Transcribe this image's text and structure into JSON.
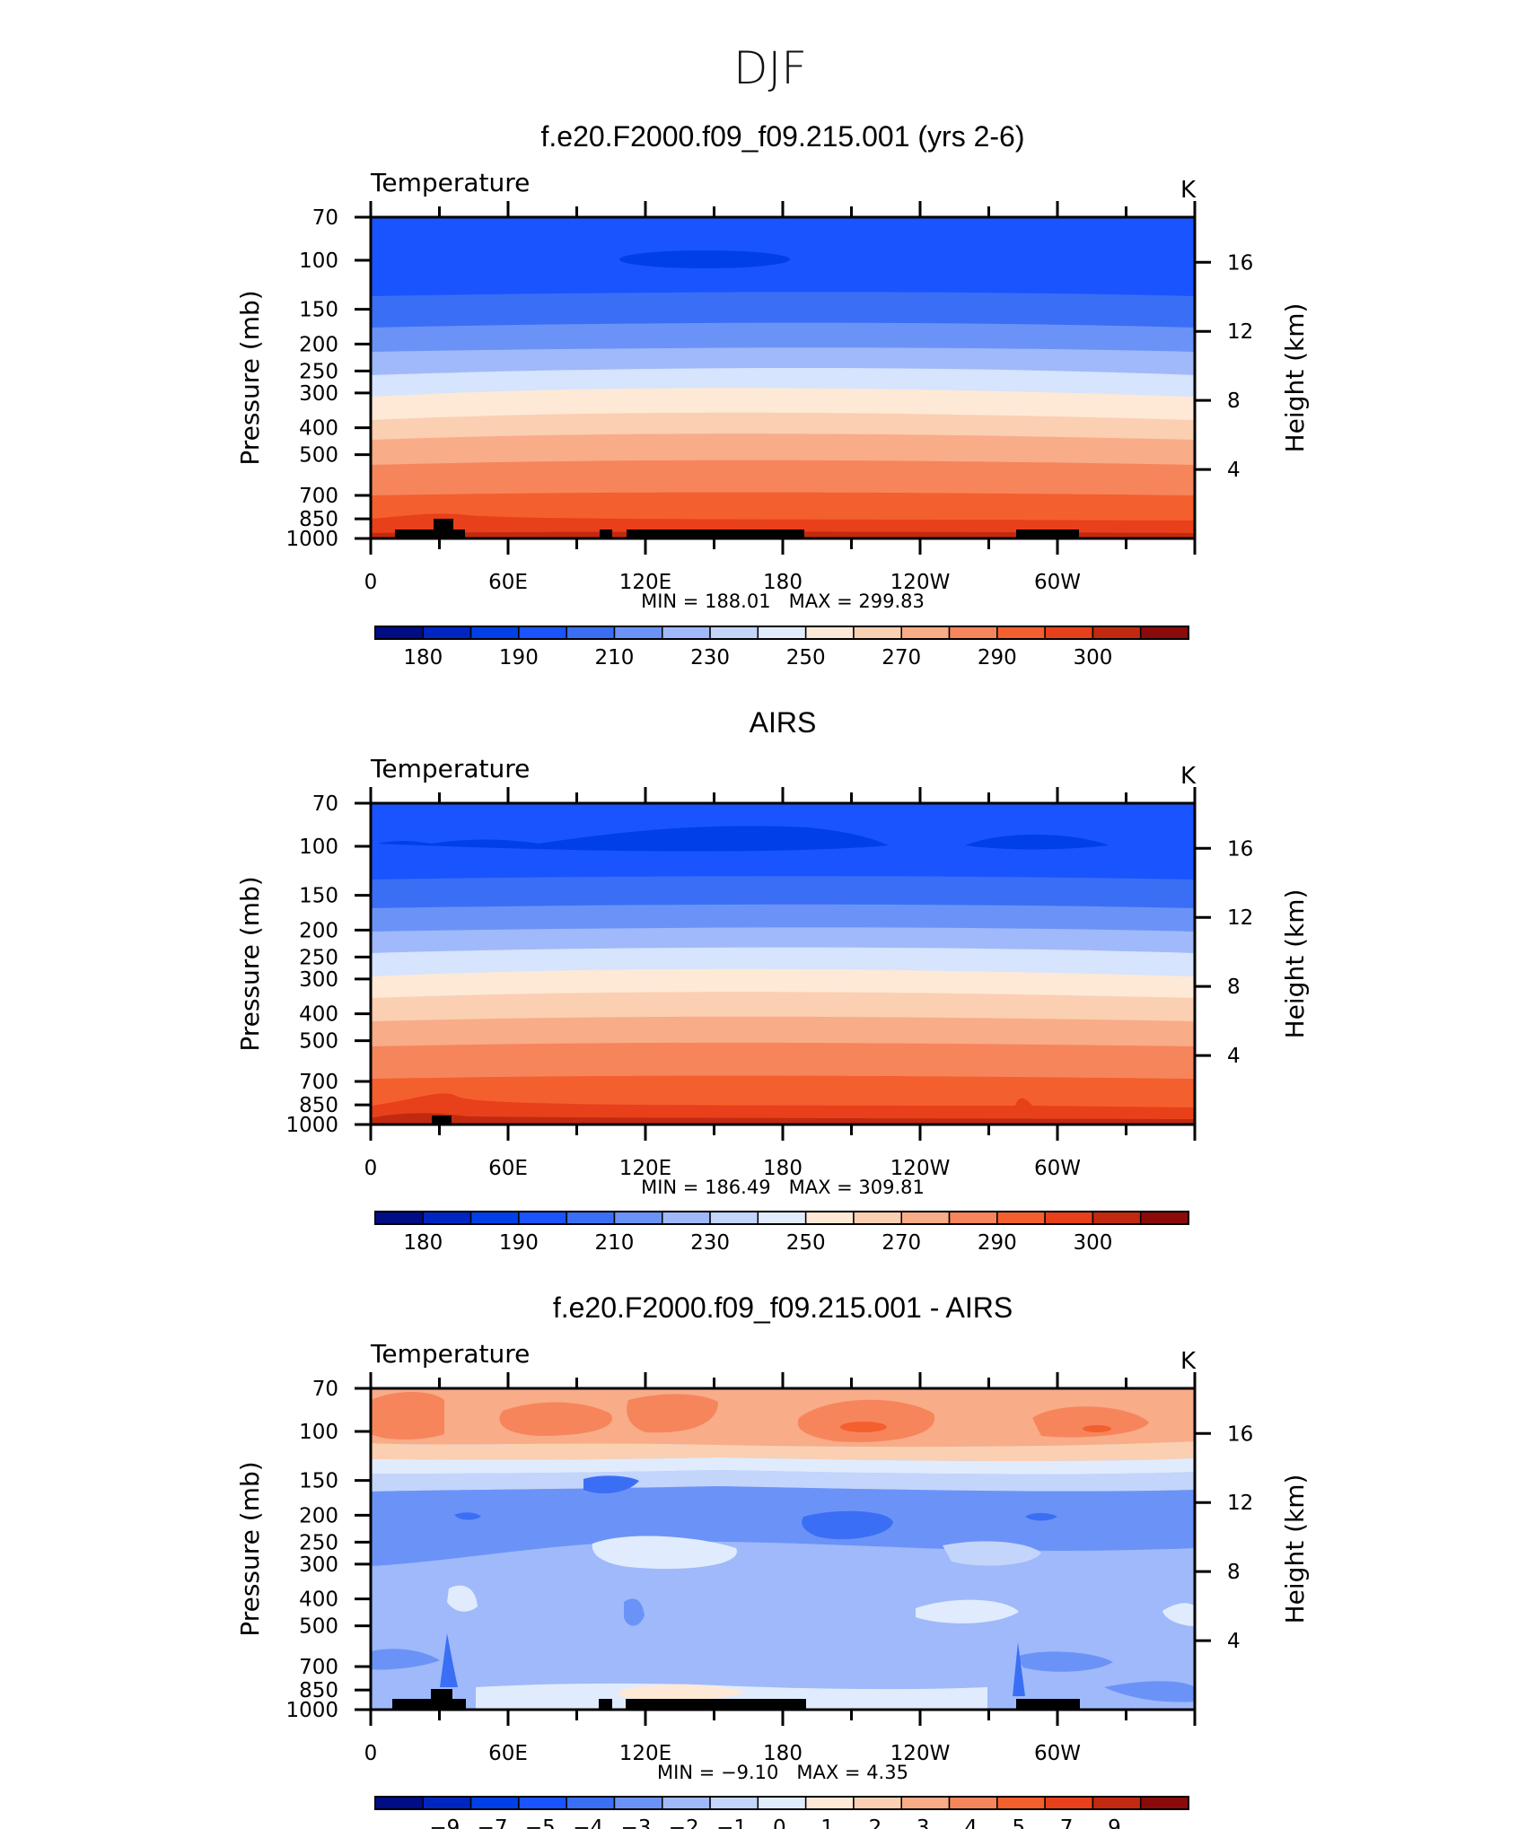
{
  "figure": {
    "season": "DJF"
  },
  "colors": {
    "abs_levels": [
      "#000d85",
      "#0026c2",
      "#0040e6",
      "#1a54ff",
      "#3a6ff5",
      "#6b93f7",
      "#9fb9fa",
      "#c3d5fb",
      "#e0ecfd",
      "#fde9d6",
      "#fbcfb2",
      "#f8ac88",
      "#f6855c",
      "#f45f2e",
      "#e8401a",
      "#c12a10",
      "#8b0a0a"
    ],
    "diff_levels": [
      "#000d85",
      "#0026c2",
      "#0040e6",
      "#1a54ff",
      "#3a6ff5",
      "#6b93f7",
      "#9fb9fa",
      "#c3d5fb",
      "#e0ecfd",
      "#fde9d6",
      "#fbcfb2",
      "#f8ac88",
      "#f6855c",
      "#f45f2e",
      "#e8401a",
      "#c12a10",
      "#8b0a0a"
    ],
    "land": "#000000"
  },
  "chart_data": [
    {
      "type": "heatmap",
      "title": "f.e20.F2000.f09_f09.215.001 (yrs 2-6)",
      "variable": "Temperature",
      "units": "K",
      "ylabel": "Pressure (mb)",
      "ylabel_right": "Height (km)",
      "x_ticks": [
        "0",
        "60E",
        "120E",
        "180",
        "120W",
        "60W"
      ],
      "y_ticks": [
        70,
        100,
        150,
        200,
        250,
        300,
        400,
        500,
        700,
        850,
        1000
      ],
      "y_ticks_right": [
        16,
        12,
        8,
        4
      ],
      "ylim": [
        1000,
        70
      ],
      "stats": "MIN = 188.01   MAX = 299.83",
      "min": 188.01,
      "max": 299.83,
      "colorbar_labels": [
        "180",
        "190",
        "210",
        "230",
        "250",
        "270",
        "290",
        "300"
      ],
      "levels_by_pressure": [
        {
          "p": 70,
          "T": 205
        },
        {
          "p": 120,
          "T": 205
        },
        {
          "p": 150,
          "T": 210
        },
        {
          "p": 185,
          "T": 215
        },
        {
          "p": 230,
          "T": 220
        },
        {
          "p": 270,
          "T": 230
        },
        {
          "p": 320,
          "T": 240
        },
        {
          "p": 380,
          "T": 250
        },
        {
          "p": 460,
          "T": 255
        },
        {
          "p": 560,
          "T": 265
        },
        {
          "p": 660,
          "T": 270
        },
        {
          "p": 800,
          "T": 280
        },
        {
          "p": 950,
          "T": 285
        },
        {
          "p": 1000,
          "T": 290
        }
      ]
    },
    {
      "type": "heatmap",
      "title": "AIRS",
      "variable": "Temperature",
      "units": "K",
      "ylabel": "Pressure (mb)",
      "ylabel_right": "Height (km)",
      "x_ticks": [
        "0",
        "60E",
        "120E",
        "180",
        "120W",
        "60W"
      ],
      "y_ticks": [
        70,
        100,
        150,
        200,
        250,
        300,
        400,
        500,
        700,
        850,
        1000
      ],
      "y_ticks_right": [
        16,
        12,
        8,
        4
      ],
      "ylim": [
        1000,
        70
      ],
      "stats": "MIN = 186.49   MAX = 309.81",
      "min": 186.49,
      "max": 309.81,
      "colorbar_labels": [
        "180",
        "190",
        "210",
        "230",
        "250",
        "270",
        "290",
        "300"
      ]
    },
    {
      "type": "heatmap",
      "title": "f.e20.F2000.f09_f09.215.001 - AIRS",
      "variable": "Temperature",
      "units": "K",
      "ylabel": "Pressure (mb)",
      "ylabel_right": "Height (km)",
      "x_ticks": [
        "0",
        "60E",
        "120E",
        "180",
        "120W",
        "60W"
      ],
      "y_ticks": [
        70,
        100,
        150,
        200,
        250,
        300,
        400,
        500,
        700,
        850,
        1000
      ],
      "y_ticks_right": [
        16,
        12,
        8,
        4
      ],
      "ylim": [
        1000,
        70
      ],
      "stats": "MIN = −9.10   MAX = 4.35",
      "min": -9.1,
      "max": 4.35,
      "colorbar_labels": [
        "−9",
        "−7",
        "−5",
        "−4",
        "−3",
        "−2",
        "−1",
        "0",
        "1",
        "2",
        "3",
        "4",
        "5",
        "7",
        "9"
      ]
    }
  ]
}
